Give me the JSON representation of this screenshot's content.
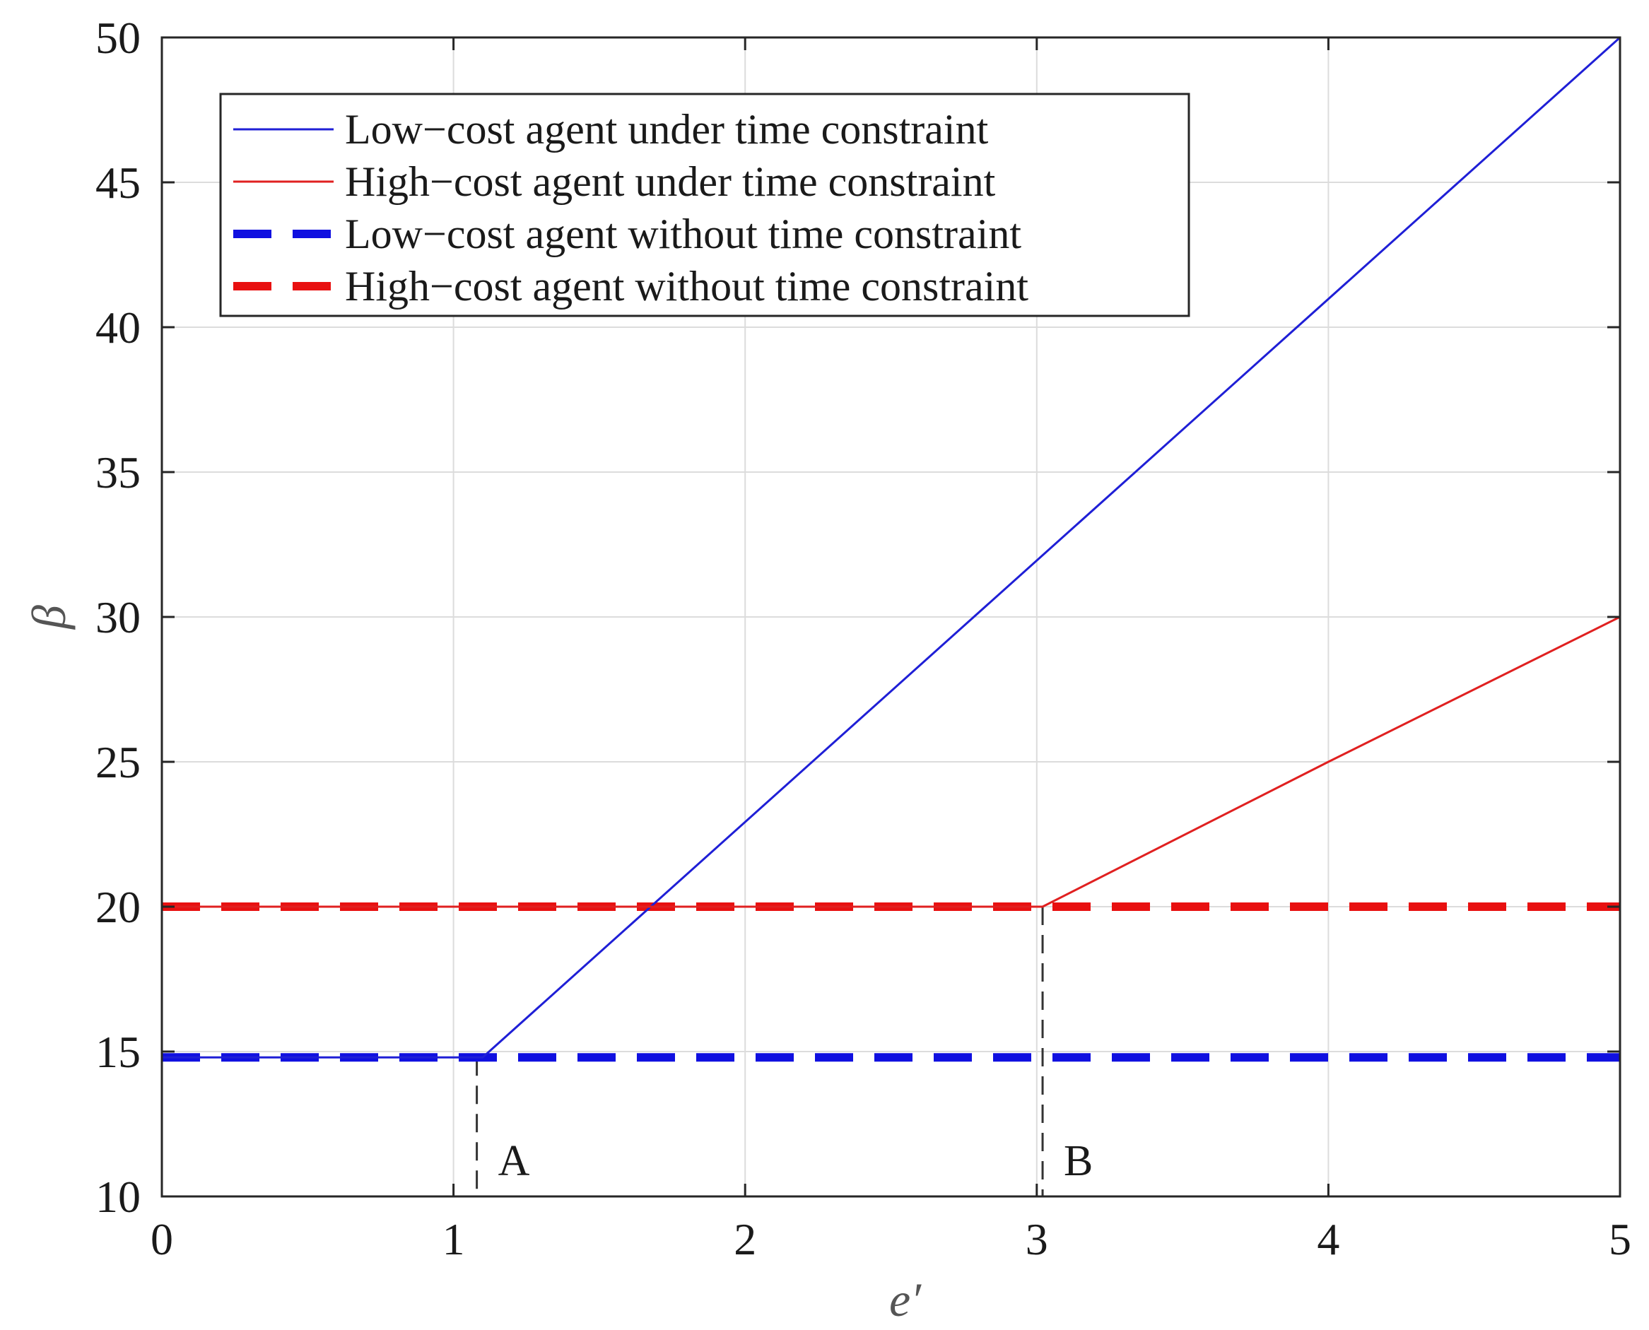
{
  "chart_data": {
    "type": "line",
    "xlabel": "e′",
    "ylabel": "β",
    "xlim": [
      0,
      5
    ],
    "ylim": [
      10,
      50
    ],
    "xticks": [
      "0",
      "1",
      "2",
      "3",
      "4",
      "5"
    ],
    "yticks": [
      "10",
      "15",
      "20",
      "25",
      "30",
      "35",
      "40",
      "45",
      "50"
    ],
    "xtick_values": [
      0,
      1,
      2,
      3,
      4,
      5
    ],
    "ytick_values": [
      10,
      15,
      20,
      25,
      30,
      35,
      40,
      45,
      50
    ],
    "grid": true,
    "legend_position": "top-left",
    "series": [
      {
        "name": "Low−cost agent under time constraint",
        "style": "solid",
        "color": "#1f1fd6",
        "x": [
          0,
          1.1,
          5
        ],
        "y": [
          14.8,
          14.8,
          50
        ]
      },
      {
        "name": "High−cost agent under time constraint",
        "style": "solid",
        "color": "#e02020",
        "x": [
          0,
          3.02,
          4,
          5
        ],
        "y": [
          20,
          20,
          25,
          30
        ]
      },
      {
        "name": "Low−cost agent without time constraint",
        "style": "dashed",
        "color": "#1010e0",
        "x": [
          0,
          5
        ],
        "y": [
          14.8,
          14.8
        ]
      },
      {
        "name": "High−cost agent without time constraint",
        "style": "dashed",
        "color": "#e81010",
        "x": [
          0,
          5
        ],
        "y": [
          20,
          20
        ]
      }
    ],
    "annotations": [
      {
        "text": "A",
        "x": 1.08,
        "y_from": 10,
        "y_to": 14.8
      },
      {
        "text": "B",
        "x": 3.02,
        "y_from": 10,
        "y_to": 20
      }
    ]
  }
}
